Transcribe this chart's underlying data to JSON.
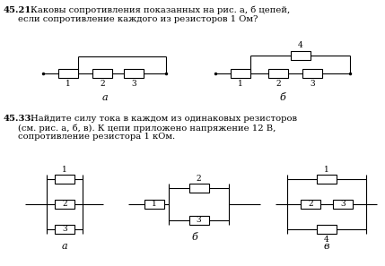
{
  "title_num1": "45.21.",
  "title_text1": "Каковы сопротивления показанных на рис. а, б цепей,",
  "title_text1b": "если сопротивление каждого из резисторов 1 Ом?",
  "title_num2": "45.33.",
  "title_text2": "Найдите силу тока в каждом из одинаковых резисторов",
  "title_text2b": "(см. рис. а, б, в). К цепи приложено напряжение 12 В,",
  "title_text2c": "сопротивление резистора 1 кОм.",
  "bg_color": "#ffffff",
  "line_color": "#000000",
  "label_a1": "а",
  "label_b1": "б",
  "label_a2": "а",
  "label_b2": "б",
  "label_v2": "в",
  "rw": 22,
  "rh": 10
}
